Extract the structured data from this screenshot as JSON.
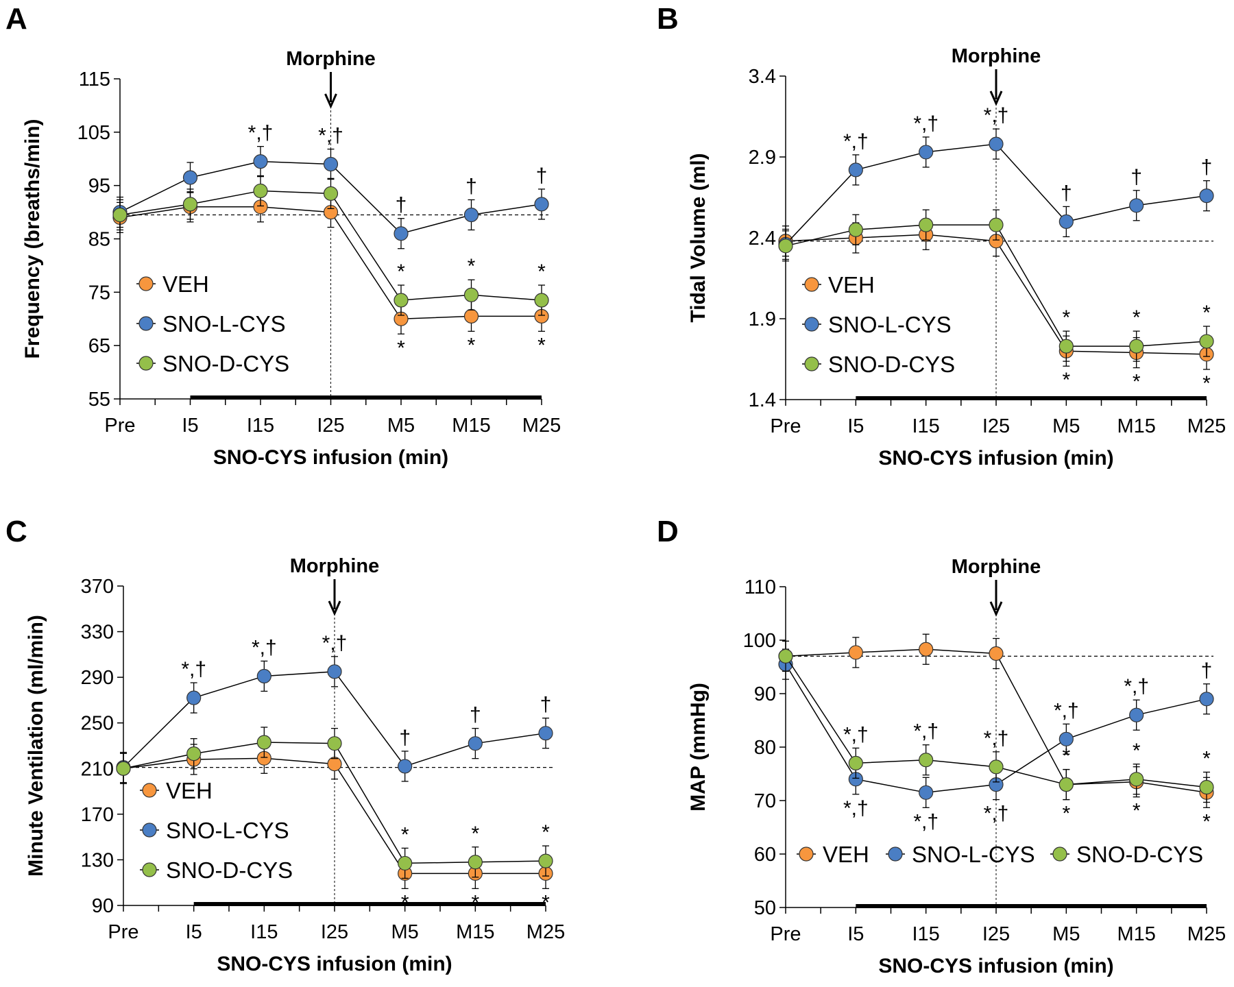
{
  "colors": {
    "VEH": "#f7963e",
    "SNO-L-CYS": "#4a7ec4",
    "SNO-D-CYS": "#94bf4a"
  },
  "chart_data": [
    {
      "panel": "A",
      "type": "line",
      "categories": [
        "Pre",
        "I5",
        "I15",
        "I25",
        "M5",
        "M15",
        "M25"
      ],
      "xlabel": "SNO-CYS infusion (min)",
      "ylabel": "Frequency (breaths/min)",
      "ylim": [
        55,
        115
      ],
      "yticks": [
        55,
        65,
        75,
        85,
        95,
        105,
        115
      ],
      "baseline": 89.5,
      "event_label": "Morphine",
      "event_at": "I25",
      "legend": "bottom-left-vertical",
      "series": [
        {
          "name": "VEH",
          "values": [
            89,
            91,
            91,
            90,
            70,
            70.5,
            70.5
          ]
        },
        {
          "name": "SNO-L-CYS",
          "values": [
            90,
            96.5,
            99.5,
            99,
            86,
            89.5,
            91.5
          ]
        },
        {
          "name": "SNO-D-CYS",
          "values": [
            89.5,
            91.5,
            94,
            93.5,
            73.5,
            74.5,
            73.5
          ]
        }
      ],
      "annotations": [
        {
          "at": "I15",
          "series": "SNO-L-CYS",
          "pos": "above",
          "text": "*,†"
        },
        {
          "at": "I25",
          "series": "SNO-L-CYS",
          "pos": "above",
          "text": "*,†"
        },
        {
          "at": "M5",
          "series": "SNO-L-CYS",
          "pos": "above",
          "text": "†"
        },
        {
          "at": "M15",
          "series": "SNO-L-CYS",
          "pos": "above",
          "text": "†"
        },
        {
          "at": "M25",
          "series": "SNO-L-CYS",
          "pos": "above",
          "text": "†"
        },
        {
          "at": "M5",
          "series": "SNO-D-CYS",
          "pos": "above",
          "text": "*"
        },
        {
          "at": "M15",
          "series": "SNO-D-CYS",
          "pos": "above",
          "text": "*"
        },
        {
          "at": "M25",
          "series": "SNO-D-CYS",
          "pos": "above",
          "text": "*"
        },
        {
          "at": "M5",
          "series": "VEH",
          "pos": "below",
          "text": "*"
        },
        {
          "at": "M15",
          "series": "VEH",
          "pos": "below",
          "text": "*"
        },
        {
          "at": "M25",
          "series": "VEH",
          "pos": "below",
          "text": "*"
        }
      ]
    },
    {
      "panel": "B",
      "type": "line",
      "categories": [
        "Pre",
        "I5",
        "I15",
        "I25",
        "M5",
        "M15",
        "M25"
      ],
      "xlabel": "SNO-CYS infusion (min)",
      "ylabel": "Tidal Volume (ml)",
      "ylim": [
        1.4,
        3.4
      ],
      "yticks": [
        1.4,
        1.9,
        2.4,
        2.9,
        3.4
      ],
      "baseline": 2.38,
      "event_label": "Morphine",
      "event_at": "I25",
      "legend": "bottom-left-vertical",
      "series": [
        {
          "name": "VEH",
          "values": [
            2.38,
            2.4,
            2.42,
            2.38,
            1.7,
            1.69,
            1.68
          ]
        },
        {
          "name": "SNO-L-CYS",
          "values": [
            2.36,
            2.82,
            2.93,
            2.98,
            2.5,
            2.6,
            2.66
          ]
        },
        {
          "name": "SNO-D-CYS",
          "values": [
            2.35,
            2.45,
            2.48,
            2.48,
            1.73,
            1.73,
            1.76
          ]
        }
      ],
      "annotations": [
        {
          "at": "I5",
          "series": "SNO-L-CYS",
          "pos": "above",
          "text": "*,†"
        },
        {
          "at": "I15",
          "series": "SNO-L-CYS",
          "pos": "above",
          "text": "*,†"
        },
        {
          "at": "I25",
          "series": "SNO-L-CYS",
          "pos": "above",
          "text": "*,†"
        },
        {
          "at": "M5",
          "series": "SNO-L-CYS",
          "pos": "above",
          "text": "†"
        },
        {
          "at": "M15",
          "series": "SNO-L-CYS",
          "pos": "above",
          "text": "†"
        },
        {
          "at": "M25",
          "series": "SNO-L-CYS",
          "pos": "above",
          "text": "†"
        },
        {
          "at": "M5",
          "series": "SNO-D-CYS",
          "pos": "above",
          "text": "*"
        },
        {
          "at": "M15",
          "series": "SNO-D-CYS",
          "pos": "above",
          "text": "*"
        },
        {
          "at": "M25",
          "series": "SNO-D-CYS",
          "pos": "above",
          "text": "*"
        },
        {
          "at": "M5",
          "series": "VEH",
          "pos": "below",
          "text": "*"
        },
        {
          "at": "M15",
          "series": "VEH",
          "pos": "below",
          "text": "*"
        },
        {
          "at": "M25",
          "series": "VEH",
          "pos": "below",
          "text": "*"
        }
      ]
    },
    {
      "panel": "C",
      "type": "line",
      "categories": [
        "Pre",
        "I5",
        "I15",
        "I25",
        "M5",
        "M15",
        "M25"
      ],
      "xlabel": "SNO-CYS infusion (min)",
      "ylabel": "Minute Ventilation (ml/min)",
      "ylim": [
        90,
        370
      ],
      "yticks": [
        90,
        130,
        170,
        210,
        250,
        290,
        330,
        370
      ],
      "baseline": 211,
      "event_label": "Morphine",
      "event_at": "I25",
      "legend": "bottom-left-vertical",
      "series": [
        {
          "name": "VEH",
          "values": [
            210,
            218,
            219,
            214,
            118,
            118,
            118
          ]
        },
        {
          "name": "SNO-L-CYS",
          "values": [
            211,
            272,
            291,
            295,
            212,
            232,
            241
          ]
        },
        {
          "name": "SNO-D-CYS",
          "values": [
            210,
            223,
            233,
            232,
            127,
            128,
            129
          ]
        }
      ],
      "annotations": [
        {
          "at": "I5",
          "series": "SNO-L-CYS",
          "pos": "above",
          "text": "*,†"
        },
        {
          "at": "I15",
          "series": "SNO-L-CYS",
          "pos": "above",
          "text": "*,†"
        },
        {
          "at": "I25",
          "series": "SNO-L-CYS",
          "pos": "above",
          "text": "*,†"
        },
        {
          "at": "M5",
          "series": "SNO-L-CYS",
          "pos": "above",
          "text": "†"
        },
        {
          "at": "M15",
          "series": "SNO-L-CYS",
          "pos": "above",
          "text": "†"
        },
        {
          "at": "M25",
          "series": "SNO-L-CYS",
          "pos": "above",
          "text": "†"
        },
        {
          "at": "M5",
          "series": "SNO-D-CYS",
          "pos": "above",
          "text": "*"
        },
        {
          "at": "M15",
          "series": "SNO-D-CYS",
          "pos": "above",
          "text": "*"
        },
        {
          "at": "M25",
          "series": "SNO-D-CYS",
          "pos": "above",
          "text": "*"
        },
        {
          "at": "M5",
          "series": "VEH",
          "pos": "below",
          "text": "*"
        },
        {
          "at": "M15",
          "series": "VEH",
          "pos": "below",
          "text": "*"
        },
        {
          "at": "M25",
          "series": "VEH",
          "pos": "below",
          "text": "*"
        }
      ]
    },
    {
      "panel": "D",
      "type": "line",
      "categories": [
        "Pre",
        "I5",
        "I15",
        "I25",
        "M5",
        "M15",
        "M25"
      ],
      "xlabel": "SNO-CYS infusion (min)",
      "ylabel": "MAP (mmHg)",
      "ylim": [
        50,
        110
      ],
      "yticks": [
        50,
        60,
        70,
        80,
        90,
        100,
        110
      ],
      "baseline": 97,
      "event_label": "Morphine",
      "event_at": "I25",
      "legend": "bottom-horizontal",
      "series": [
        {
          "name": "VEH",
          "values": [
            97,
            97.7,
            98.3,
            97.5,
            73,
            73.5,
            71.5
          ]
        },
        {
          "name": "SNO-L-CYS",
          "values": [
            95.5,
            74,
            71.5,
            73,
            81.5,
            86,
            89
          ]
        },
        {
          "name": "SNO-D-CYS",
          "values": [
            97,
            77,
            77.6,
            76.3,
            73,
            74,
            72.5
          ]
        }
      ],
      "annotations": [
        {
          "at": "I5",
          "series": "SNO-D-CYS",
          "pos": "above",
          "text": "*,†"
        },
        {
          "at": "I15",
          "series": "SNO-D-CYS",
          "pos": "above",
          "text": "*,†"
        },
        {
          "at": "I25",
          "series": "SNO-D-CYS",
          "pos": "above",
          "text": "*,†"
        },
        {
          "at": "I5",
          "series": "SNO-L-CYS",
          "pos": "below",
          "text": "*,†"
        },
        {
          "at": "I15",
          "series": "SNO-L-CYS",
          "pos": "below",
          "text": "*,†"
        },
        {
          "at": "I25",
          "series": "SNO-L-CYS",
          "pos": "below",
          "text": "*,†"
        },
        {
          "at": "M5",
          "series": "SNO-L-CYS",
          "pos": "above",
          "text": "*,†"
        },
        {
          "at": "M15",
          "series": "SNO-L-CYS",
          "pos": "above",
          "text": "*,†"
        },
        {
          "at": "M25",
          "series": "SNO-L-CYS",
          "pos": "above",
          "text": "†"
        },
        {
          "at": "M5",
          "series": "SNO-D-CYS",
          "pos": "above",
          "text": "*"
        },
        {
          "at": "M15",
          "series": "SNO-D-CYS",
          "pos": "above",
          "text": "*"
        },
        {
          "at": "M25",
          "series": "SNO-D-CYS",
          "pos": "above",
          "text": "*"
        },
        {
          "at": "M5",
          "series": "VEH",
          "pos": "below",
          "text": "*"
        },
        {
          "at": "M15",
          "series": "VEH",
          "pos": "below",
          "text": "*"
        },
        {
          "at": "M25",
          "series": "VEH",
          "pos": "below",
          "text": "*"
        }
      ]
    }
  ]
}
